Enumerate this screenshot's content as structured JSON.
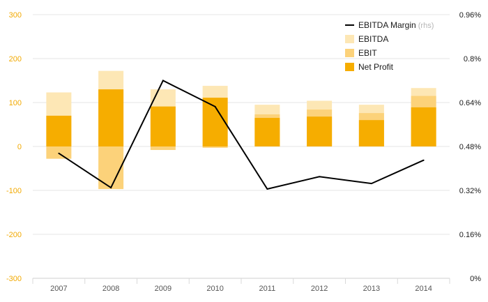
{
  "chart_data": {
    "type": "bar",
    "categories": [
      "2007",
      "2008",
      "2009",
      "2010",
      "2011",
      "2012",
      "2013",
      "2014"
    ],
    "series": [
      {
        "name": "EBITDA",
        "kind": "bar",
        "axis": "left",
        "color": "#fde7b5",
        "values": [
          123,
          172,
          130,
          138,
          95,
          104,
          95,
          133
        ]
      },
      {
        "name": "EBIT",
        "kind": "bar",
        "axis": "left",
        "color": "#fcd27a",
        "values": [
          -28,
          -97,
          -8,
          -3,
          73,
          84,
          76,
          115
        ]
      },
      {
        "name": "Net Profit",
        "kind": "bar",
        "axis": "left",
        "color": "#f6ad00",
        "values": [
          70,
          130,
          91,
          111,
          65,
          68,
          60,
          89
        ]
      },
      {
        "name": "EBITDA Margin",
        "legend_suffix": "(rhs)",
        "kind": "line",
        "axis": "right",
        "color": "#000000",
        "values": [
          0.455,
          0.33,
          0.72,
          0.625,
          0.325,
          0.37,
          0.345,
          0.43
        ]
      }
    ],
    "ylim_left": [
      -300,
      300
    ],
    "yticks_left": [
      "300",
      "200",
      "100",
      "0",
      "-100",
      "-200",
      "-300"
    ],
    "ylim_right": [
      0,
      0.96
    ],
    "yticks_right": [
      "0.96%",
      "0.8%",
      "0.64%",
      "0.48%",
      "0.32%",
      "0.16%",
      "0%"
    ],
    "grid": true,
    "legend_position": "top-right",
    "legend_order": [
      "EBITDA Margin",
      "EBITDA",
      "EBIT",
      "Net Profit"
    ],
    "colors": {
      "left_axis_text": "#f2a900",
      "right_axis_text": "#1a1a1a",
      "grid": "#e6e6e6"
    }
  }
}
